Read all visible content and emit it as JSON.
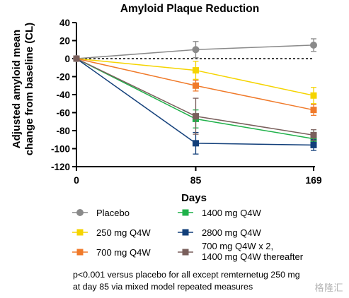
{
  "chart_data": {
    "type": "line",
    "title": "Amyloid Plaque Reduction",
    "ylabel_lines": [
      "Adjusted amyloid mean",
      "change from baseline (CL)"
    ],
    "xlabel": "Days",
    "x": [
      0,
      85,
      169
    ],
    "x_tick_labels": [
      "0",
      "85",
      "169"
    ],
    "ylim": [
      -120,
      40
    ],
    "y_ticks": [
      40,
      20,
      0,
      -20,
      -40,
      -60,
      -80,
      -100,
      -120
    ],
    "reference_line": 0,
    "series": [
      {
        "name": "Placebo",
        "color": "#8a8a8a",
        "marker": "circle",
        "values": [
          0,
          10,
          15
        ],
        "errors": [
          0,
          9,
          7
        ]
      },
      {
        "name": "250 mg Q4W",
        "color": "#f5d400",
        "marker": "square",
        "values": [
          0,
          -13,
          -41
        ],
        "errors": [
          0,
          10,
          9
        ]
      },
      {
        "name": "700 mg Q4W",
        "color": "#f07a2a",
        "marker": "square",
        "values": [
          0,
          -30,
          -57
        ],
        "errors": [
          0,
          6,
          6
        ]
      },
      {
        "name": "1400 mg Q4W",
        "color": "#1fb14a",
        "marker": "square",
        "values": [
          0,
          -67,
          -89
        ],
        "errors": [
          0,
          10,
          7
        ]
      },
      {
        "name": "2800 mg Q4W",
        "color": "#123f7a",
        "marker": "square",
        "values": [
          0,
          -94,
          -96
        ],
        "errors": [
          0,
          12,
          6
        ]
      },
      {
        "name_lines": [
          "700 mg Q4W x 2,",
          "1400 mg Q4W thereafter"
        ],
        "color": "#7a5f5c",
        "marker": "square",
        "values": [
          0,
          -64,
          -85
        ],
        "errors": [
          0,
          20,
          6
        ]
      }
    ],
    "legend": [
      {
        "series": 0,
        "col": 0,
        "row": 0
      },
      {
        "series": 1,
        "col": 0,
        "row": 1
      },
      {
        "series": 2,
        "col": 0,
        "row": 2
      },
      {
        "series": 3,
        "col": 1,
        "row": 0
      },
      {
        "series": 4,
        "col": 1,
        "row": 1
      },
      {
        "series": 5,
        "col": 1,
        "row": 2
      }
    ]
  },
  "footnote": {
    "line1": "p<0.001 versus placebo for all except remternetug 250 mg",
    "line2": "at day 85 via mixed model repeated measures"
  },
  "watermark": "格隆汇"
}
